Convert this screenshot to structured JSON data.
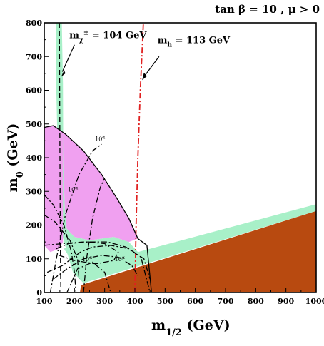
{
  "chart_data": {
    "type": "contour",
    "title": "tan β = 10 ,  μ > 0",
    "xlabel_main": "m",
    "xlabel_sub": "1/2",
    "xlabel_unit": " (GeV)",
    "ylabel_main": "m",
    "ylabel_sub": "0",
    "ylabel_unit": " (GeV)",
    "xlim": [
      100,
      1000
    ],
    "ylim": [
      0,
      800
    ],
    "x_ticks": [
      100,
      200,
      300,
      400,
      500,
      600,
      700,
      800,
      900,
      1000
    ],
    "y_ticks": [
      0,
      100,
      200,
      300,
      400,
      500,
      600,
      700,
      800
    ],
    "colors": {
      "brown": "#b84a10",
      "green": "#a8f0c8",
      "pink": "#f0a0f0",
      "red": "#e02020",
      "line": "#000000"
    },
    "regions": [
      {
        "color": "brown",
        "points": [
          [
            218,
            0
          ],
          [
            1000,
            0
          ],
          [
            1000,
            242
          ],
          [
            222,
            22
          ]
        ]
      },
      {
        "color": "green",
        "points": [
          [
            138,
            800
          ],
          [
            158,
            800
          ],
          [
            162,
            620
          ],
          [
            163,
            380
          ],
          [
            168,
            250
          ],
          [
            174,
            190
          ],
          [
            200,
            165
          ],
          [
            250,
            155
          ],
          [
            330,
            165
          ],
          [
            380,
            150
          ],
          [
            410,
            120
          ],
          [
            1000,
            262
          ],
          [
            1000,
            242
          ],
          [
            230,
            28
          ],
          [
            195,
            60
          ],
          [
            175,
            120
          ],
          [
            160,
            170
          ],
          [
            150,
            300
          ],
          [
            145,
            400
          ],
          [
            140,
            600
          ]
        ]
      },
      {
        "color": "pink",
        "points": [
          [
            100,
            490
          ],
          [
            130,
            495
          ],
          [
            170,
            470
          ],
          [
            230,
            420
          ],
          [
            290,
            350
          ],
          [
            340,
            280
          ],
          [
            380,
            220
          ],
          [
            410,
            160
          ],
          [
            380,
            150
          ],
          [
            330,
            165
          ],
          [
            250,
            155
          ],
          [
            200,
            165
          ],
          [
            174,
            190
          ],
          [
            168,
            250
          ],
          [
            163,
            380
          ],
          [
            162,
            480
          ],
          [
            162,
            150
          ],
          [
            150,
            130
          ],
          [
            120,
            120
          ],
          [
            100,
            140
          ]
        ]
      },
      {
        "color": "green",
        "points": [
          [
            165,
            130
          ],
          [
            200,
            145
          ],
          [
            250,
            150
          ],
          [
            330,
            145
          ],
          [
            360,
            120
          ],
          [
            350,
            90
          ],
          [
            300,
            80
          ],
          [
            230,
            100
          ],
          [
            180,
            110
          ]
        ]
      }
    ],
    "curves": [
      {
        "id": "chargino",
        "style": "dash",
        "points": [
          [
            150,
            800
          ],
          [
            151,
            600
          ],
          [
            152,
            400
          ],
          [
            153,
            200
          ],
          [
            154,
            60
          ],
          [
            155,
            0
          ]
        ]
      },
      {
        "id": "higgs",
        "style": "dashdot",
        "color": "red",
        "points": [
          [
            400,
            0
          ],
          [
            404,
            200
          ],
          [
            410,
            400
          ],
          [
            418,
            600
          ],
          [
            428,
            800
          ]
        ]
      },
      {
        "id": "lsp-boundary",
        "style": "solid",
        "points": [
          [
            100,
            490
          ],
          [
            130,
            495
          ],
          [
            170,
            470
          ],
          [
            230,
            420
          ],
          [
            290,
            350
          ],
          [
            340,
            280
          ],
          [
            380,
            220
          ],
          [
            410,
            160
          ],
          [
            440,
            140
          ],
          [
            455,
            0
          ]
        ]
      },
      {
        "id": "contour-10a-top",
        "style": "dashdot",
        "points": [
          [
            120,
            0
          ],
          [
            140,
            100
          ],
          [
            170,
            230
          ],
          [
            215,
            350
          ],
          [
            260,
            420
          ],
          [
            290,
            440
          ]
        ]
      },
      {
        "id": "contour-10a-top-b",
        "style": "dashdot",
        "points": [
          [
            230,
            0
          ],
          [
            240,
            100
          ],
          [
            260,
            220
          ],
          [
            285,
            310
          ],
          [
            300,
            340
          ]
        ]
      },
      {
        "id": "contour-10a-mid",
        "style": "dashdot",
        "points": [
          [
            100,
            290
          ],
          [
            130,
            260
          ],
          [
            165,
            200
          ],
          [
            190,
            120
          ],
          [
            200,
            60
          ],
          [
            205,
            0
          ]
        ]
      },
      {
        "id": "contour-10a-mid-b",
        "style": "dashdot",
        "points": [
          [
            100,
            230
          ],
          [
            135,
            210
          ],
          [
            185,
            155
          ],
          [
            210,
            100
          ],
          [
            215,
            40
          ]
        ]
      },
      {
        "id": "contour-10a-low-left",
        "style": "dashdot",
        "points": [
          [
            110,
            60
          ],
          [
            160,
            80
          ],
          [
            220,
            120
          ],
          [
            260,
            135
          ],
          [
            320,
            140
          ],
          [
            380,
            130
          ],
          [
            430,
            100
          ],
          [
            450,
            40
          ]
        ]
      },
      {
        "id": "contour-10a-low-b",
        "style": "dashdot",
        "points": [
          [
            100,
            140
          ],
          [
            160,
            145
          ],
          [
            230,
            150
          ],
          [
            310,
            150
          ],
          [
            370,
            135
          ],
          [
            420,
            105
          ],
          [
            450,
            0
          ]
        ]
      },
      {
        "id": "contour-10a-low-c",
        "style": "dashdot",
        "points": [
          [
            130,
            40
          ],
          [
            175,
            70
          ],
          [
            230,
            100
          ],
          [
            290,
            110
          ],
          [
            345,
            105
          ],
          [
            390,
            80
          ],
          [
            410,
            50
          ]
        ]
      },
      {
        "id": "contour-10a-low-d",
        "style": "dashdot",
        "points": [
          [
            175,
            0
          ],
          [
            210,
            70
          ],
          [
            260,
            90
          ],
          [
            300,
            60
          ],
          [
            320,
            0
          ]
        ]
      },
      {
        "id": "contour-inner-ellipse",
        "style": "dashdot",
        "points": [
          [
            140,
            130
          ],
          [
            180,
            145
          ],
          [
            240,
            150
          ],
          [
            300,
            145
          ],
          [
            345,
            120
          ],
          [
            330,
            95
          ],
          [
            270,
            85
          ],
          [
            200,
            95
          ],
          [
            150,
            110
          ]
        ]
      }
    ],
    "contour_labels": [
      {
        "text": "10",
        "sup": "α",
        "x": 268,
        "y": 450
      },
      {
        "text": "10",
        "sup": "α",
        "x": 178,
        "y": 300
      },
      {
        "text": "10",
        "sup": "α",
        "x": 225,
        "y": 93
      },
      {
        "text": "10",
        "sup": "α",
        "x": 333,
        "y": 93
      }
    ],
    "annotations": {
      "chargino": {
        "main": "m",
        "sub": "χ",
        "sup": "±",
        "value": " = 104 GeV",
        "x": 183,
        "y": 755
      },
      "higgs": {
        "main": "m",
        "sub": "h",
        "value": "  = 113 GeV",
        "x": 475,
        "y": 740
      }
    }
  }
}
